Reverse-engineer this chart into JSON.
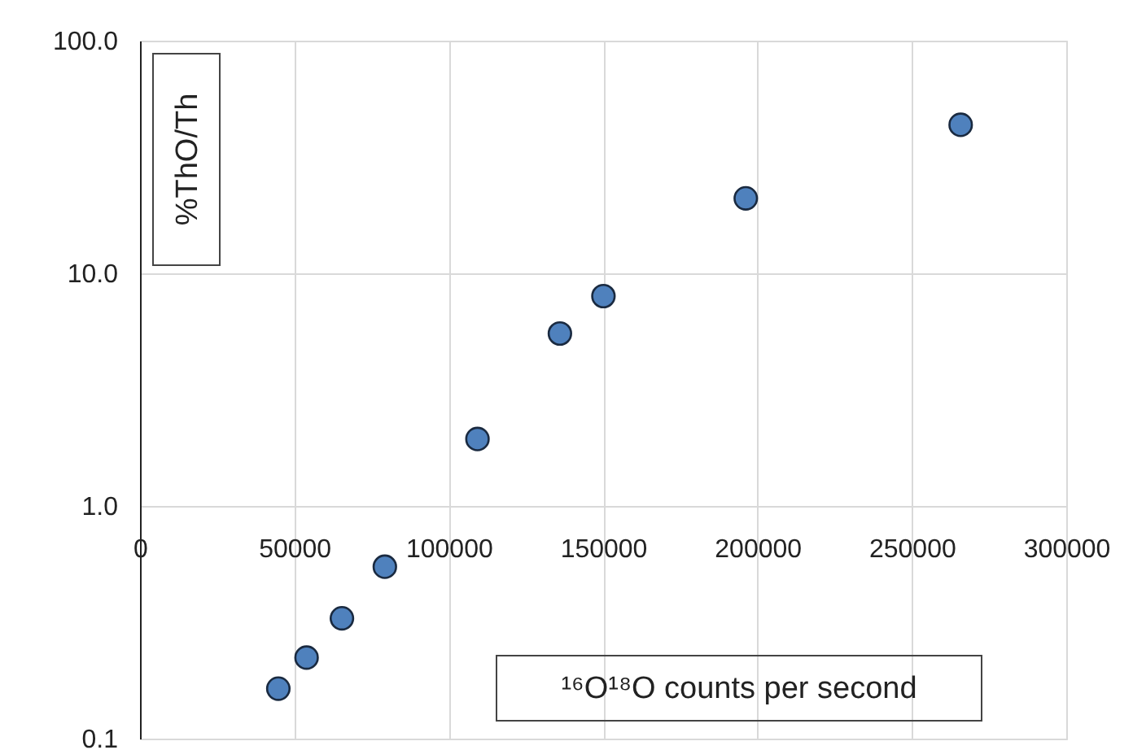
{
  "chart_data": {
    "type": "scatter",
    "xlabel": "¹⁶O¹⁸O counts per second",
    "ylabel": "%ThO/Th",
    "x": [
      44800,
      53950,
      65400,
      79300,
      109300,
      136000,
      150100,
      196200,
      265800
    ],
    "series": [
      {
        "color": "#4f81bd",
        "values": [
          0.164,
          0.223,
          0.329,
          0.548,
          1.94,
          5.51,
          7.98,
          21.0,
          43.5
        ]
      }
    ],
    "xlim": [
      0,
      300000
    ],
    "xticks": [
      0,
      50000,
      100000,
      150000,
      200000,
      250000,
      300000
    ],
    "ylim": [
      0.1,
      100
    ],
    "yticks": [
      {
        "value": 0.1,
        "label": "0.1"
      },
      {
        "value": 1,
        "label": "1.0"
      },
      {
        "value": 10,
        "label": "10.0"
      },
      {
        "value": 100,
        "label": "100.0"
      }
    ],
    "log": true,
    "grid": true,
    "marker": "circle"
  }
}
